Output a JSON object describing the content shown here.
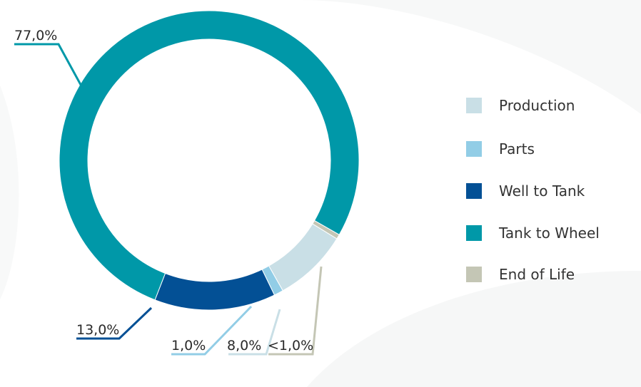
{
  "chart_data": {
    "type": "pie",
    "variant": "donut",
    "title": "",
    "series": [
      {
        "name": "Production",
        "value": 8.0,
        "label": "8,0%",
        "color": "#c9dfe6"
      },
      {
        "name": "Parts",
        "value": 1.0,
        "label": "1,0%",
        "color": "#92cde6"
      },
      {
        "name": "Well to Tank",
        "value": 13.0,
        "label": "13,0%",
        "color": "#035095"
      },
      {
        "name": "Tank to Wheel",
        "value": 77.0,
        "label": "77,0%",
        "color": "#0098a8"
      },
      {
        "name": "End of Life",
        "value": 0.5,
        "label": "<1,0%",
        "color": "#c4c6b5"
      }
    ],
    "legend_position": "right"
  },
  "background_color": "#ffffff"
}
